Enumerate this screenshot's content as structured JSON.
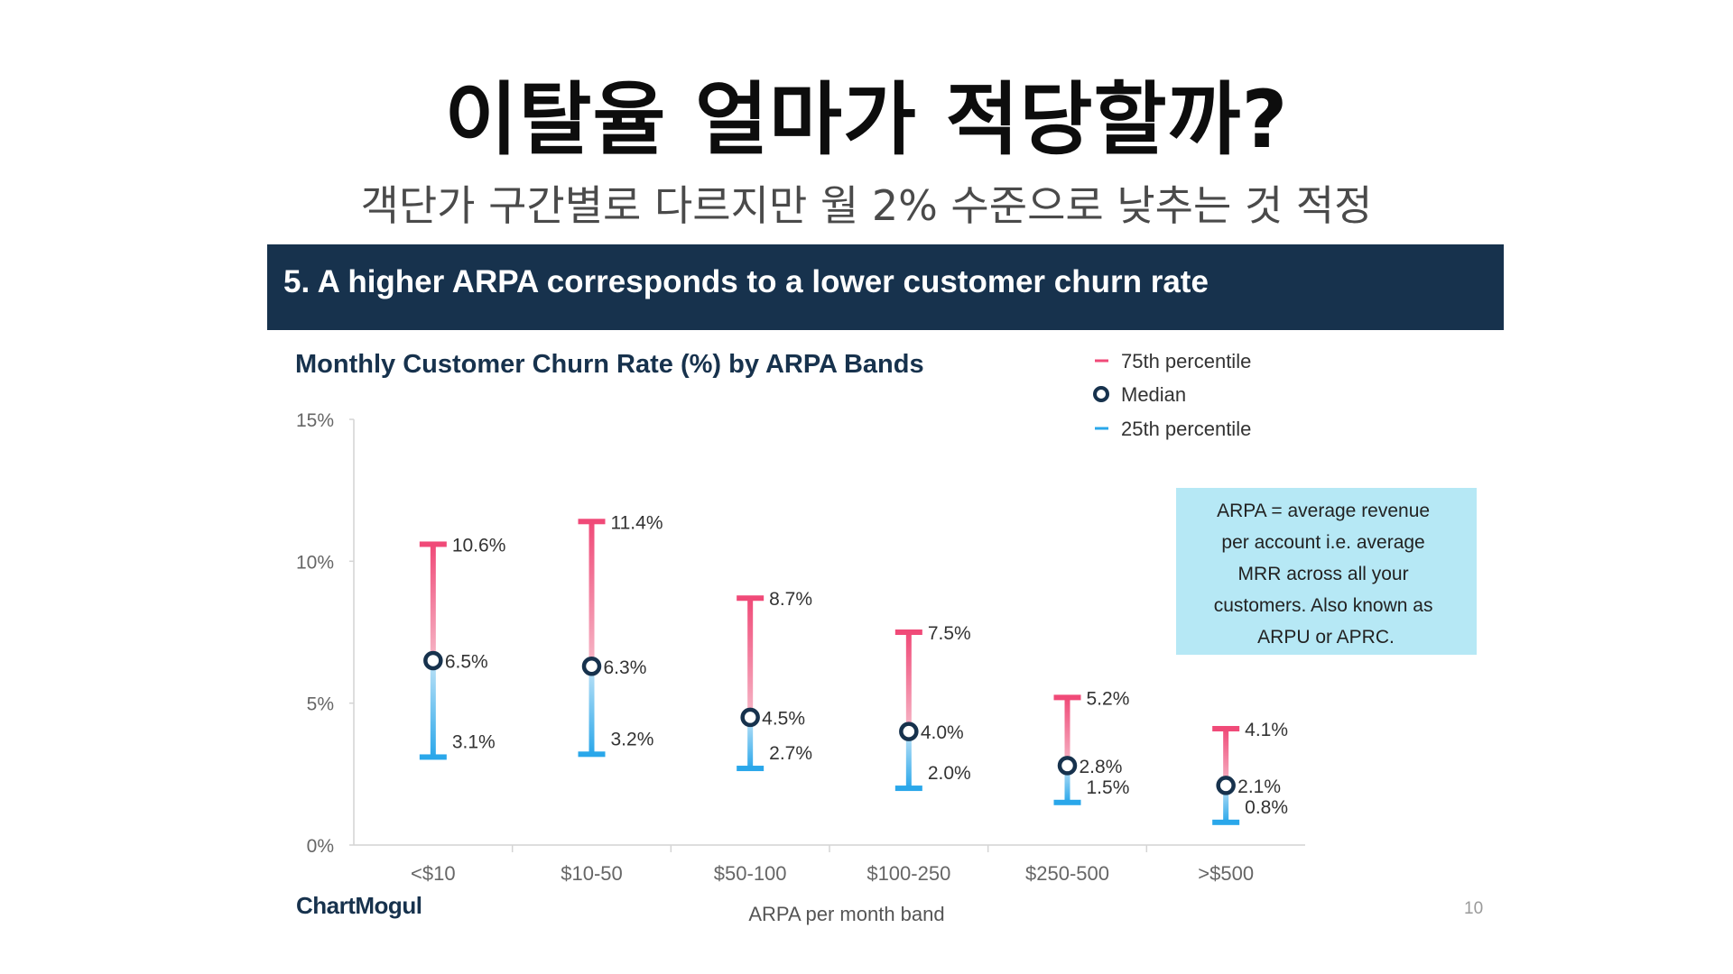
{
  "page": {
    "title": "이탈율 얼마가 적당할까?",
    "subtitle": "객단가 구간별로 다르지만 월 2% 수준으로 낮추는 것 적정"
  },
  "slide": {
    "header": "5. A higher ARPA corresponds to a lower customer churn rate",
    "brand": "ChartMogul",
    "page_number": "10",
    "note": [
      "ARPA = average revenue",
      "per account i.e. average",
      "MRR across all your",
      "customers. Also known as",
      "ARPU or APRC."
    ]
  },
  "colors": {
    "header_bg": "#17324d",
    "p75": "#f04a78",
    "p25": "#2aa7ea",
    "median": "#17324d",
    "note_bg": "#b6e8f5"
  },
  "chart_data": {
    "type": "range",
    "title": "Monthly Customer Churn Rate (%) by ARPA Bands",
    "xlabel": "ARPA per month band",
    "ylabel": "",
    "ylim": [
      0,
      15
    ],
    "yticks": [
      "0%",
      "5%",
      "10%",
      "15%"
    ],
    "categories": [
      "<$10",
      "$10-50",
      "$50-100",
      "$100-250",
      "$250-500",
      ">$500"
    ],
    "legend": {
      "position": "top-right",
      "items": [
        "75th percentile",
        "Median",
        "25th percentile"
      ]
    },
    "series": [
      {
        "name": "75th percentile",
        "values": [
          10.6,
          11.4,
          8.7,
          7.5,
          5.2,
          4.1
        ],
        "labels": [
          "10.6%",
          "11.4%",
          "8.7%",
          "7.5%",
          "5.2%",
          "4.1%"
        ]
      },
      {
        "name": "Median",
        "values": [
          6.5,
          6.3,
          4.5,
          4.0,
          2.8,
          2.1
        ],
        "labels": [
          "6.5%",
          "6.3%",
          "4.5%",
          "4.0%",
          "2.8%",
          "2.1%"
        ]
      },
      {
        "name": "25th percentile",
        "values": [
          3.1,
          3.2,
          2.7,
          2.0,
          1.5,
          0.8
        ],
        "labels": [
          "3.1%",
          "3.2%",
          "2.7%",
          "2.0%",
          "1.5%",
          "0.8%"
        ]
      }
    ]
  }
}
